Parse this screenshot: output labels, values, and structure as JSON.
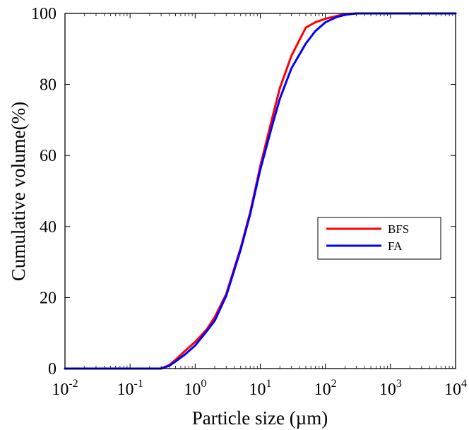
{
  "chart_data": {
    "type": "line",
    "xlabel": "Particle size (µm)",
    "ylabel": "Cumulative volume(%)",
    "x_scale": "log",
    "xlim": [
      0.01,
      10000
    ],
    "ylim": [
      0,
      100
    ],
    "x_ticks": [
      {
        "value": 0.01,
        "base": "10",
        "exp": "-2"
      },
      {
        "value": 0.1,
        "base": "10",
        "exp": "-1"
      },
      {
        "value": 1,
        "base": "10",
        "exp": "0"
      },
      {
        "value": 10,
        "base": "10",
        "exp": "1"
      },
      {
        "value": 100,
        "base": "10",
        "exp": "2"
      },
      {
        "value": 1000,
        "base": "10",
        "exp": "3"
      },
      {
        "value": 10000,
        "base": "10",
        "exp": "4"
      }
    ],
    "y_ticks": [
      "0",
      "20",
      "40",
      "60",
      "80",
      "100"
    ],
    "grid": false,
    "legend_position": "right",
    "series": [
      {
        "name": "BFS",
        "color": "#ff0000",
        "points": [
          [
            0.01,
            0
          ],
          [
            0.1,
            0
          ],
          [
            0.3,
            0
          ],
          [
            0.4,
            1
          ],
          [
            0.5,
            2.5
          ],
          [
            0.7,
            5
          ],
          [
            1,
            7.5
          ],
          [
            1.5,
            11
          ],
          [
            2,
            14.5
          ],
          [
            3,
            21
          ],
          [
            5,
            34
          ],
          [
            7,
            44
          ],
          [
            10,
            57
          ],
          [
            15,
            70
          ],
          [
            20,
            79
          ],
          [
            30,
            88
          ],
          [
            50,
            96
          ],
          [
            70,
            97.5
          ],
          [
            100,
            98.5
          ],
          [
            150,
            99.3
          ],
          [
            200,
            99.8
          ],
          [
            300,
            100
          ],
          [
            10000,
            100
          ]
        ]
      },
      {
        "name": "FA",
        "color": "#0000ff",
        "points": [
          [
            0.01,
            0
          ],
          [
            0.1,
            0
          ],
          [
            0.3,
            0
          ],
          [
            0.4,
            0.8
          ],
          [
            0.5,
            2
          ],
          [
            0.7,
            4
          ],
          [
            1,
            6.5
          ],
          [
            1.5,
            10.5
          ],
          [
            2,
            13.5
          ],
          [
            3,
            20.5
          ],
          [
            5,
            33.5
          ],
          [
            7,
            43.5
          ],
          [
            10,
            56
          ],
          [
            15,
            68
          ],
          [
            20,
            76
          ],
          [
            30,
            84.5
          ],
          [
            50,
            91.5
          ],
          [
            70,
            95
          ],
          [
            100,
            97.5
          ],
          [
            150,
            99
          ],
          [
            200,
            99.6
          ],
          [
            300,
            100
          ],
          [
            10000,
            100
          ]
        ]
      }
    ]
  }
}
